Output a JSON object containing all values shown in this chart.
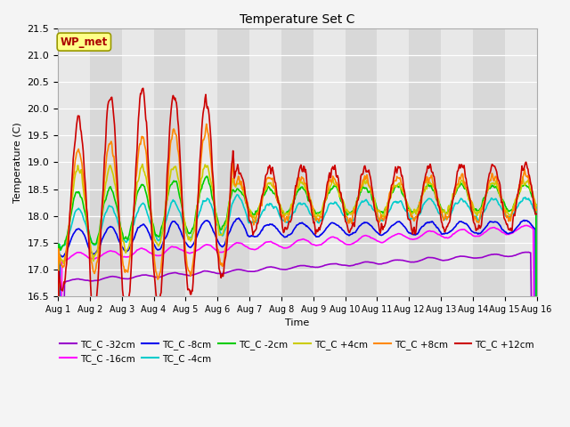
{
  "title": "Temperature Set C",
  "xlabel": "Time",
  "ylabel": "Temperature (C)",
  "ylim": [
    16.5,
    21.5
  ],
  "yticks": [
    16.5,
    17.0,
    17.5,
    18.0,
    18.5,
    19.0,
    19.5,
    20.0,
    20.5,
    21.0,
    21.5
  ],
  "xlim_days": [
    0,
    15
  ],
  "xtick_labels": [
    "Aug 1",
    "Aug 2",
    "Aug 3",
    "Aug 4",
    "Aug 5",
    "Aug 6",
    "Aug 7",
    "Aug 8",
    "Aug 9",
    "Aug 10",
    "Aug 11",
    "Aug 12",
    "Aug 13",
    "Aug 14",
    "Aug 15",
    "Aug 16"
  ],
  "series": [
    {
      "label": "TC_C -32cm",
      "color": "#9900cc"
    },
    {
      "label": "TC_C -16cm",
      "color": "#ff00ff"
    },
    {
      "label": "TC_C -8cm",
      "color": "#0000ee"
    },
    {
      "label": "TC_C -4cm",
      "color": "#00cccc"
    },
    {
      "label": "TC_C -2cm",
      "color": "#00cc00"
    },
    {
      "label": "TC_C +4cm",
      "color": "#cccc00"
    },
    {
      "label": "TC_C +8cm",
      "color": "#ff8800"
    },
    {
      "label": "TC_C +12cm",
      "color": "#cc0000"
    }
  ],
  "wp_met_box_color": "#ffff88",
  "wp_met_text_color": "#aa0000",
  "fig_facecolor": "#f4f4f4",
  "ax_facecolor": "#e8e8e8",
  "band_colors": [
    "#e8e8e8",
    "#d8d8d8"
  ]
}
